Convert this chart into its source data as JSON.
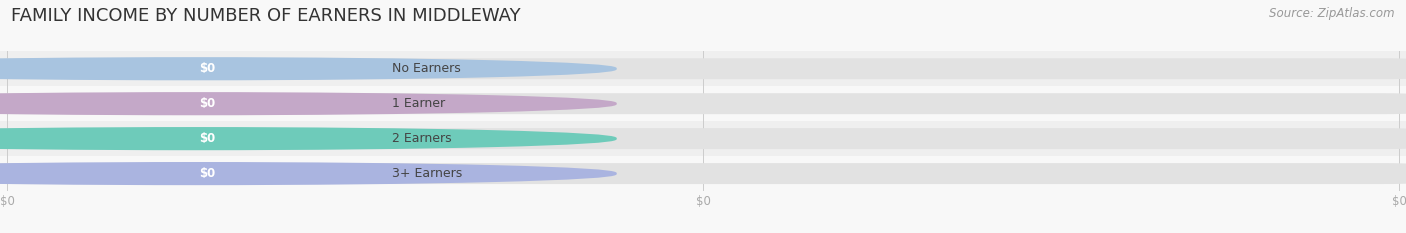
{
  "title": "FAMILY INCOME BY NUMBER OF EARNERS IN MIDDLEWAY",
  "source": "Source: ZipAtlas.com",
  "categories": [
    "No Earners",
    "1 Earner",
    "2 Earners",
    "3+ Earners"
  ],
  "values": [
    0,
    0,
    0,
    0
  ],
  "bar_colors": [
    "#a8c4e0",
    "#c4a8c8",
    "#6ecbba",
    "#aab4e0"
  ],
  "label_text": [
    "$0",
    "$0",
    "$0",
    "$0"
  ],
  "bg_color": "#f8f8f8",
  "title_fontsize": 13,
  "source_fontsize": 8.5,
  "bar_height": 0.58,
  "row_bg_light": "#f0f0f0",
  "row_bg_dark": "#e8e8e8",
  "bar_bg_color": "#e2e2e2",
  "label_pill_color_alpha": 0.85
}
